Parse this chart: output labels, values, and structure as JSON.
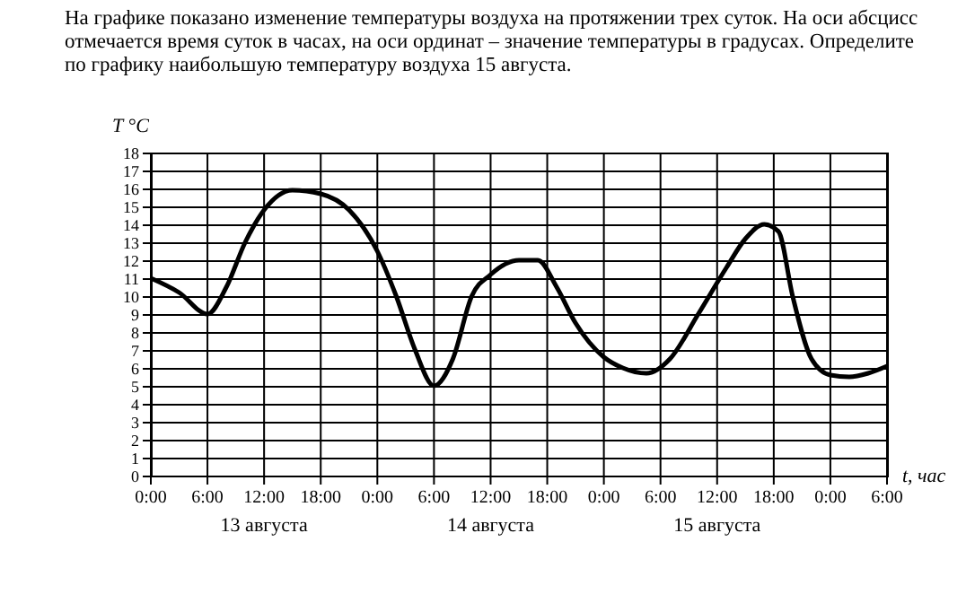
{
  "chart_data": {
    "type": "line",
    "title": "На графике показано изменение температуры воздуха на протяжении трех суток. На оси абсцисс отмечается время суток в часах, на оси ординат – значение температуры в градусах. Определите по графику наибольшую температуру воздуха 15 августа.",
    "xlabel": "t, час",
    "ylabel": "T °C",
    "x": [
      "--08-13T00:00",
      "--08-13T03:00",
      "--08-13T06:00",
      "--08-13T08:00",
      "--08-13T10:00",
      "--08-13T12:00",
      "--08-13T15:00",
      "--08-13T18:00",
      "--08-13T21:00",
      "--08-14T00:00",
      "--08-14T02:00",
      "--08-14T04:00",
      "--08-14T06:00",
      "--08-14T08:00",
      "--08-14T10:00",
      "--08-14T12:00",
      "--08-14T15:00",
      "--08-14T17:00",
      "--08-14T19:00",
      "--08-14T21:00",
      "--08-15T00:00",
      "--08-15T02:00",
      "--08-15T04:30",
      "--08-15T07:00",
      "--08-15T10:00",
      "--08-15T13:00",
      "--08-15T15:00",
      "--08-15T17:00",
      "--08-15T18:30",
      "--08-15T20:00",
      "--08-15T22:00",
      "--08-16T00:00",
      "--08-16T02:00",
      "--08-16T04:00",
      "--08-16T06:00"
    ],
    "series": [
      {
        "color": "#000000",
        "values": [
          11,
          10.2,
          9,
          10.5,
          13,
          14.8,
          15.9,
          15.7,
          14.8,
          12.5,
          10,
          7,
          5,
          6.5,
          10,
          11.2,
          12,
          12,
          10.5,
          8.5,
          6.6,
          6,
          5.7,
          6.5,
          9,
          11.6,
          13.2,
          14,
          13.6,
          10,
          6.5,
          5.6,
          5.5,
          5.7,
          6.1
        ]
      }
    ],
    "xlim": [
      "--08-13T00:00",
      "--08-16T06:00"
    ],
    "ylim": [
      0,
      18
    ],
    "xticks": [
      {
        "value": "--08-13T00:00",
        "label": "0:00"
      },
      {
        "value": "--08-13T06:00",
        "label": "6:00"
      },
      {
        "value": "--08-13T12:00",
        "label": "12:00"
      },
      {
        "value": "--08-13T18:00",
        "label": "18:00"
      },
      {
        "value": "--08-14T00:00",
        "label": "0:00"
      },
      {
        "value": "--08-14T06:00",
        "label": "6:00"
      },
      {
        "value": "--08-14T12:00",
        "label": "12:00"
      },
      {
        "value": "--08-14T18:00",
        "label": "18:00"
      },
      {
        "value": "--08-15T00:00",
        "label": "0:00"
      },
      {
        "value": "--08-15T06:00",
        "label": "6:00"
      },
      {
        "value": "--08-15T12:00",
        "label": "12:00"
      },
      {
        "value": "--08-15T18:00",
        "label": "18:00"
      },
      {
        "value": "--08-16T00:00",
        "label": "0:00"
      },
      {
        "value": "--08-16T06:00",
        "label": "6:00"
      }
    ],
    "yticks": [
      0,
      1,
      2,
      3,
      4,
      5,
      6,
      7,
      8,
      9,
      10,
      11,
      12,
      13,
      14,
      15,
      16,
      17,
      18
    ],
    "annotations": [
      "13 августа",
      "14 августа",
      "15 августа"
    ],
    "grid": true,
    "marker": "none",
    "line_style": "solid"
  }
}
